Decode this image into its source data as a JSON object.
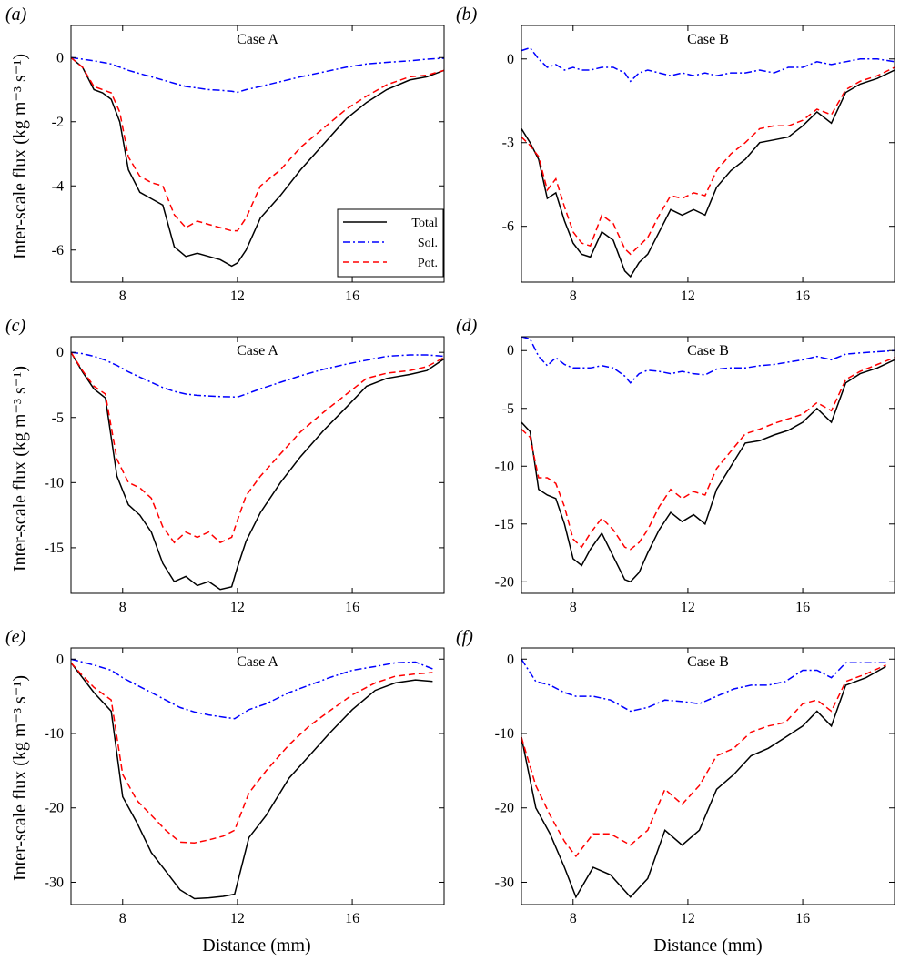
{
  "figure": {
    "ylabel": "Inter-scale flux (kg m⁻³ s⁻¹)",
    "xlabel": "Distance (mm)"
  },
  "legend": {
    "entries": [
      {
        "label": "Total",
        "color": "#000000",
        "dash": "solid"
      },
      {
        "label": "Sol.",
        "color": "#0000ff",
        "dash": "dashdot"
      },
      {
        "label": "Pot.",
        "color": "#ff0000",
        "dash": "dashed"
      }
    ]
  },
  "chart_data": [
    {
      "panel": "(a)",
      "type": "line",
      "title": "Case A",
      "xlim": [
        6.2,
        19.2
      ],
      "ylim": [
        -7.0,
        1.0
      ],
      "xticks": [
        8,
        12,
        16
      ],
      "yticks": [
        0,
        -2,
        -4,
        -6
      ],
      "x": [
        6.2,
        6.6,
        7.0,
        7.3,
        7.6,
        7.9,
        8.2,
        8.6,
        9.0,
        9.4,
        9.8,
        10.2,
        10.6,
        11.0,
        11.4,
        11.8,
        12.0,
        12.3,
        12.8,
        13.5,
        14.2,
        15.0,
        15.8,
        16.5,
        17.2,
        18.0,
        18.6,
        19.2
      ],
      "series": [
        {
          "name": "Total",
          "values": [
            0.0,
            -0.3,
            -1.0,
            -1.1,
            -1.3,
            -2.0,
            -3.5,
            -4.2,
            -4.4,
            -4.6,
            -5.9,
            -6.2,
            -6.1,
            -6.2,
            -6.3,
            -6.5,
            -6.4,
            -6.0,
            -5.0,
            -4.3,
            -3.5,
            -2.7,
            -1.9,
            -1.4,
            -1.0,
            -0.7,
            -0.6,
            -0.4
          ]
        },
        {
          "name": "Sol.",
          "values": [
            0.0,
            -0.05,
            -0.1,
            -0.15,
            -0.2,
            -0.3,
            -0.4,
            -0.5,
            -0.6,
            -0.7,
            -0.8,
            -0.9,
            -0.95,
            -1.0,
            -1.02,
            -1.05,
            -1.08,
            -1.0,
            -0.9,
            -0.75,
            -0.6,
            -0.45,
            -0.3,
            -0.2,
            -0.15,
            -0.1,
            -0.05,
            -0.02
          ]
        },
        {
          "name": "Pot.",
          "values": [
            0.0,
            -0.3,
            -0.9,
            -1.0,
            -1.1,
            -1.7,
            -3.1,
            -3.7,
            -3.9,
            -4.0,
            -4.9,
            -5.3,
            -5.1,
            -5.2,
            -5.3,
            -5.4,
            -5.4,
            -5.0,
            -4.0,
            -3.5,
            -2.8,
            -2.2,
            -1.6,
            -1.2,
            -0.85,
            -0.6,
            -0.55,
            -0.4
          ]
        }
      ]
    },
    {
      "panel": "(b)",
      "type": "line",
      "title": "Case B",
      "xlim": [
        6.2,
        19.2
      ],
      "ylim": [
        -8.0,
        1.2
      ],
      "xticks": [
        8,
        12,
        16
      ],
      "yticks": [
        0,
        -3,
        -6
      ],
      "x": [
        6.2,
        6.5,
        6.8,
        7.1,
        7.4,
        7.7,
        8.0,
        8.3,
        8.6,
        9.0,
        9.4,
        9.8,
        10.0,
        10.3,
        10.6,
        11.0,
        11.4,
        11.8,
        12.2,
        12.6,
        13.0,
        13.5,
        14.0,
        14.5,
        15.0,
        15.5,
        16.0,
        16.5,
        17.0,
        17.5,
        18.0,
        18.6,
        19.2
      ],
      "series": [
        {
          "name": "Total",
          "values": [
            -2.5,
            -3.0,
            -3.6,
            -5.0,
            -4.8,
            -5.8,
            -6.6,
            -7.0,
            -7.1,
            -6.2,
            -6.5,
            -7.6,
            -7.8,
            -7.3,
            -7.0,
            -6.2,
            -5.4,
            -5.6,
            -5.4,
            -5.6,
            -4.6,
            -4.0,
            -3.6,
            -3.0,
            -2.9,
            -2.8,
            -2.4,
            -1.9,
            -2.3,
            -1.2,
            -0.9,
            -0.7,
            -0.4
          ]
        },
        {
          "name": "Sol.",
          "values": [
            0.3,
            0.4,
            0.0,
            -0.3,
            -0.2,
            -0.4,
            -0.3,
            -0.4,
            -0.4,
            -0.3,
            -0.3,
            -0.5,
            -0.8,
            -0.5,
            -0.4,
            -0.5,
            -0.6,
            -0.5,
            -0.6,
            -0.5,
            -0.6,
            -0.5,
            -0.5,
            -0.4,
            -0.5,
            -0.3,
            -0.3,
            -0.1,
            -0.2,
            -0.1,
            0.0,
            0.0,
            -0.1
          ]
        },
        {
          "name": "Pot.",
          "values": [
            -2.8,
            -3.1,
            -3.5,
            -4.7,
            -4.3,
            -5.3,
            -6.2,
            -6.6,
            -6.7,
            -5.6,
            -5.9,
            -6.8,
            -7.0,
            -6.7,
            -6.4,
            -5.6,
            -4.9,
            -5.0,
            -4.8,
            -4.9,
            -4.0,
            -3.4,
            -3.0,
            -2.5,
            -2.4,
            -2.4,
            -2.2,
            -1.8,
            -2.0,
            -1.1,
            -0.8,
            -0.6,
            -0.3
          ]
        }
      ]
    },
    {
      "panel": "(c)",
      "type": "line",
      "title": "Case A",
      "xlim": [
        6.2,
        19.2
      ],
      "ylim": [
        -18.5,
        1.2
      ],
      "xticks": [
        8,
        12,
        16
      ],
      "yticks": [
        0,
        -5,
        -10,
        -15
      ],
      "x": [
        6.2,
        6.6,
        7.0,
        7.4,
        7.8,
        8.2,
        8.6,
        9.0,
        9.4,
        9.8,
        10.2,
        10.6,
        11.0,
        11.4,
        11.8,
        12.0,
        12.3,
        12.8,
        13.5,
        14.2,
        15.0,
        15.8,
        16.5,
        17.2,
        18.0,
        18.6,
        19.2
      ],
      "series": [
        {
          "name": "Total",
          "values": [
            0.0,
            -1.5,
            -2.8,
            -3.5,
            -9.5,
            -11.7,
            -12.5,
            -13.8,
            -16.2,
            -17.6,
            -17.2,
            -17.9,
            -17.6,
            -18.2,
            -18.0,
            -16.5,
            -14.5,
            -12.3,
            -10.0,
            -8.0,
            -6.0,
            -4.2,
            -2.6,
            -2.0,
            -1.7,
            -1.4,
            -0.5
          ]
        },
        {
          "name": "Sol.",
          "values": [
            0.0,
            -0.1,
            -0.3,
            -0.6,
            -1.0,
            -1.5,
            -1.9,
            -2.3,
            -2.7,
            -3.0,
            -3.2,
            -3.3,
            -3.35,
            -3.4,
            -3.42,
            -3.43,
            -3.2,
            -2.8,
            -2.3,
            -1.8,
            -1.3,
            -0.9,
            -0.6,
            -0.3,
            -0.2,
            -0.2,
            -0.3
          ]
        },
        {
          "name": "Pot.",
          "values": [
            0.0,
            -1.4,
            -2.6,
            -3.2,
            -8.2,
            -10.0,
            -10.4,
            -11.2,
            -13.4,
            -14.6,
            -13.8,
            -14.2,
            -13.8,
            -14.6,
            -14.2,
            -12.9,
            -11.0,
            -9.5,
            -7.8,
            -6.1,
            -4.6,
            -3.2,
            -2.0,
            -1.6,
            -1.4,
            -1.1,
            -0.4
          ]
        }
      ]
    },
    {
      "panel": "(d)",
      "type": "line",
      "title": "Case B",
      "xlim": [
        6.2,
        19.2
      ],
      "ylim": [
        -21.0,
        1.2
      ],
      "xticks": [
        8,
        12,
        16
      ],
      "yticks": [
        0,
        -5,
        -10,
        -15,
        -20
      ],
      "x": [
        6.2,
        6.5,
        6.8,
        7.1,
        7.4,
        7.7,
        8.0,
        8.3,
        8.6,
        9.0,
        9.4,
        9.8,
        10.0,
        10.3,
        10.6,
        11.0,
        11.4,
        11.8,
        12.2,
        12.6,
        13.0,
        13.5,
        14.0,
        14.5,
        15.0,
        15.5,
        16.0,
        16.5,
        17.0,
        17.5,
        18.0,
        18.6,
        19.2
      ],
      "series": [
        {
          "name": "Total",
          "values": [
            -6.2,
            -7.0,
            -12.0,
            -12.5,
            -12.8,
            -15.0,
            -18.0,
            -18.6,
            -17.2,
            -15.8,
            -17.8,
            -19.8,
            -20.0,
            -19.2,
            -17.5,
            -15.5,
            -14.0,
            -14.8,
            -14.2,
            -15.0,
            -12.0,
            -10.0,
            -8.0,
            -7.8,
            -7.3,
            -6.9,
            -6.2,
            -5.0,
            -6.2,
            -2.8,
            -2.0,
            -1.5,
            -0.8
          ]
        },
        {
          "name": "Sol.",
          "values": [
            1.2,
            1.0,
            -0.5,
            -1.3,
            -0.6,
            -1.2,
            -1.5,
            -1.5,
            -1.5,
            -1.3,
            -1.5,
            -2.2,
            -2.8,
            -2.0,
            -1.7,
            -1.8,
            -2.0,
            -1.8,
            -2.0,
            -2.1,
            -1.6,
            -1.5,
            -1.5,
            -1.3,
            -1.2,
            -1.0,
            -0.8,
            -0.5,
            -0.8,
            -0.3,
            -0.2,
            -0.1,
            0.0
          ]
        },
        {
          "name": "Pot.",
          "values": [
            -6.8,
            -7.5,
            -11.0,
            -11.0,
            -11.5,
            -13.5,
            -16.3,
            -17.0,
            -15.8,
            -14.5,
            -15.5,
            -17.0,
            -17.2,
            -16.6,
            -15.5,
            -13.5,
            -12.0,
            -12.8,
            -12.2,
            -12.5,
            -10.2,
            -8.7,
            -7.2,
            -6.8,
            -6.3,
            -5.9,
            -5.5,
            -4.5,
            -5.2,
            -2.5,
            -1.8,
            -1.2,
            -0.6
          ]
        }
      ]
    },
    {
      "panel": "(e)",
      "type": "line",
      "title": "Case A",
      "xlim": [
        6.2,
        19.2
      ],
      "ylim": [
        -33.0,
        1.5
      ],
      "xticks": [
        8,
        12,
        16
      ],
      "yticks": [
        0,
        -10,
        -20,
        -30
      ],
      "x": [
        6.2,
        6.5,
        7.0,
        7.6,
        8.0,
        8.5,
        9.0,
        9.5,
        10.0,
        10.5,
        11.0,
        11.5,
        11.9,
        12.4,
        13.0,
        13.8,
        14.5,
        15.2,
        16.0,
        16.8,
        17.5,
        18.2,
        18.8
      ],
      "series": [
        {
          "name": "Total",
          "values": [
            -0.5,
            -2.0,
            -4.5,
            -7.0,
            -18.5,
            -22.0,
            -26.0,
            -28.5,
            -31.0,
            -32.2,
            -32.1,
            -31.9,
            -31.6,
            -24.0,
            -21.0,
            -16.0,
            -13.0,
            -10.0,
            -6.8,
            -4.2,
            -3.2,
            -2.8,
            -3.0
          ]
        },
        {
          "name": "Sol.",
          "values": [
            0.0,
            -0.3,
            -0.8,
            -1.5,
            -2.5,
            -3.5,
            -4.5,
            -5.5,
            -6.5,
            -7.1,
            -7.5,
            -7.8,
            -8.0,
            -6.8,
            -6.0,
            -4.5,
            -3.5,
            -2.5,
            -1.5,
            -1.0,
            -0.5,
            -0.4,
            -1.3
          ]
        },
        {
          "name": "Pot.",
          "values": [
            -0.5,
            -1.8,
            -3.8,
            -5.5,
            -15.5,
            -19.0,
            -21.0,
            -23.0,
            -24.6,
            -24.7,
            -24.3,
            -23.8,
            -23.0,
            -18.0,
            -15.0,
            -11.5,
            -9.0,
            -7.0,
            -4.8,
            -3.2,
            -2.3,
            -2.0,
            -1.8
          ]
        }
      ]
    },
    {
      "panel": "(f)",
      "type": "line",
      "title": "Case B",
      "xlim": [
        6.2,
        19.2
      ],
      "ylim": [
        -33.0,
        1.5
      ],
      "xticks": [
        8,
        12,
        16
      ],
      "yticks": [
        0,
        -10,
        -20,
        -30
      ],
      "x": [
        6.2,
        6.7,
        7.2,
        7.7,
        8.1,
        8.7,
        9.3,
        10.0,
        10.6,
        11.2,
        11.8,
        12.4,
        13.0,
        13.6,
        14.2,
        14.8,
        15.4,
        16.0,
        16.5,
        17.0,
        17.5,
        18.2,
        18.9
      ],
      "series": [
        {
          "name": "Total",
          "values": [
            -10.5,
            -20.0,
            -23.5,
            -28.0,
            -32.0,
            -28.0,
            -29.0,
            -32.0,
            -29.5,
            -23.0,
            -25.0,
            -23.0,
            -17.5,
            -15.5,
            -13.0,
            -12.0,
            -10.5,
            -9.0,
            -7.0,
            -9.0,
            -3.5,
            -2.5,
            -1.0
          ]
        },
        {
          "name": "Sol.",
          "values": [
            0.0,
            -3.0,
            -3.5,
            -4.5,
            -5.0,
            -5.0,
            -5.5,
            -7.0,
            -6.5,
            -5.5,
            -5.7,
            -6.0,
            -5.0,
            -4.0,
            -3.5,
            -3.5,
            -3.0,
            -1.5,
            -1.5,
            -2.5,
            -0.5,
            -0.5,
            -0.5
          ]
        },
        {
          "name": "Pot.",
          "values": [
            -10.5,
            -17.0,
            -21.0,
            -24.5,
            -26.5,
            -23.5,
            -23.5,
            -25.0,
            -23.0,
            -17.5,
            -19.5,
            -17.0,
            -13.0,
            -12.0,
            -9.8,
            -9.0,
            -8.5,
            -6.0,
            -5.5,
            -7.0,
            -3.0,
            -2.0,
            -0.8
          ]
        }
      ]
    }
  ]
}
